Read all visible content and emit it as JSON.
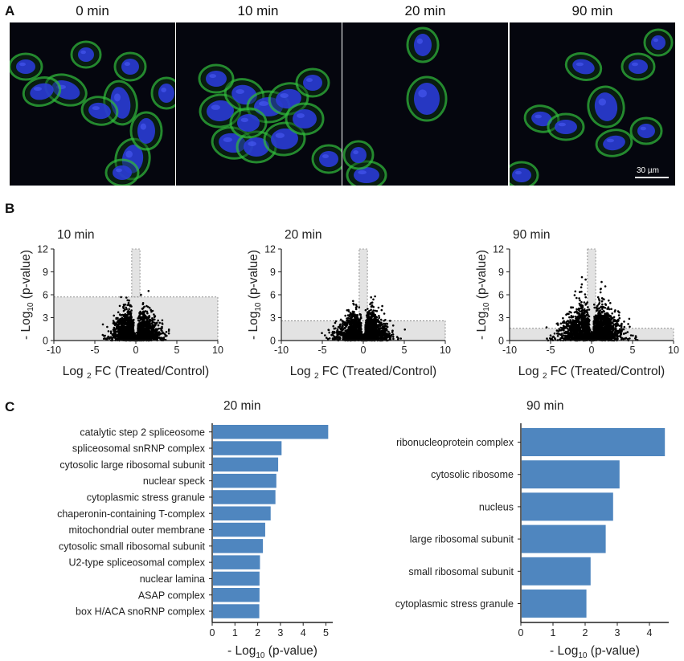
{
  "panels": {
    "a_letter": "A",
    "b_letter": "B",
    "c_letter": "C"
  },
  "panel_a": {
    "timepoints": [
      "0 min",
      "10 min",
      "20 min",
      "90 min"
    ],
    "scale_bar_label": "30 µm",
    "colors": {
      "nucleus": "#2a3bd6",
      "actin": "#2fb53a",
      "background": "#05060e"
    }
  },
  "panel_b": {
    "xlabel_prefix": "Log",
    "xlabel_sub": "2",
    "xlabel_suffix": "FC (Treated/Control)",
    "ylabel_prefix": "- Log",
    "ylabel_sub": "10",
    "ylabel_suffix": "(p-value)"
  },
  "panel_c": {
    "xlabel_prefix": "- Log",
    "xlabel_sub": "10",
    "xlabel_suffix": "(p-value)",
    "bar_color": "#4f86bf"
  },
  "chart_data": [
    {
      "type": "scatter",
      "title": "10 min",
      "xlim": [
        -10,
        10
      ],
      "ylim": [
        0,
        12
      ],
      "xticks": [
        -10,
        -5,
        0,
        5,
        10
      ],
      "yticks": [
        0,
        3,
        6,
        9,
        12
      ],
      "significance_threshold_y": 5.7,
      "fold_change_band_x": [
        -0.5,
        0.5
      ],
      "spread": {
        "core_x_sd": 1.3,
        "max_abs_x": 4.5,
        "max_y": 6.5
      }
    },
    {
      "type": "scatter",
      "title": "20 min",
      "xlim": [
        -10,
        10
      ],
      "ylim": [
        0,
        12
      ],
      "xticks": [
        -10,
        -5,
        0,
        5,
        10
      ],
      "yticks": [
        0,
        3,
        6,
        9,
        12
      ],
      "significance_threshold_y": 2.6,
      "fold_change_band_x": [
        -0.5,
        0.5
      ],
      "spread": {
        "core_x_sd": 1.4,
        "max_abs_x": 7,
        "max_y": 6.2
      }
    },
    {
      "type": "scatter",
      "title": "90 min",
      "xlim": [
        -10,
        10
      ],
      "ylim": [
        0,
        12
      ],
      "xticks": [
        -10,
        -5,
        0,
        5,
        10
      ],
      "yticks": [
        0,
        3,
        6,
        9,
        12
      ],
      "significance_threshold_y": 1.6,
      "fold_change_band_x": [
        -0.5,
        0.5
      ],
      "spread": {
        "core_x_sd": 1.7,
        "max_abs_x": 7,
        "max_y": 8.3
      }
    },
    {
      "type": "bar",
      "orientation": "horizontal",
      "title": "20 min",
      "xlim": [
        0,
        5.3
      ],
      "xticks": [
        0,
        1,
        2,
        3,
        4,
        5
      ],
      "categories": [
        "catalytic step 2 spliceosome",
        "spliceosomal snRNP complex",
        "cytosolic large ribosomal subunit",
        "nuclear speck",
        "cytoplasmic stress granule",
        "chaperonin-containing T-complex",
        "mitochondrial outer membrane",
        "cytosolic small ribosomal subunit",
        "U2-type spliceosomal complex",
        "nuclear lamina",
        "ASAP complex",
        "box H/ACA snoRNP complex"
      ],
      "values": [
        5.1,
        3.05,
        2.9,
        2.82,
        2.78,
        2.57,
        2.33,
        2.23,
        2.1,
        2.08,
        2.08,
        2.07
      ]
    },
    {
      "type": "bar",
      "orientation": "horizontal",
      "title": "90 min",
      "xlim": [
        0,
        4.6
      ],
      "xticks": [
        0,
        1,
        2,
        3,
        4
      ],
      "categories": [
        "ribonucleoprotein complex",
        "cytosolic ribosome",
        "nucleus",
        "large ribosomal subunit",
        "small ribosomal subunit",
        "cytoplasmic stress granule"
      ],
      "values": [
        4.48,
        3.07,
        2.87,
        2.64,
        2.17,
        2.04
      ]
    }
  ]
}
